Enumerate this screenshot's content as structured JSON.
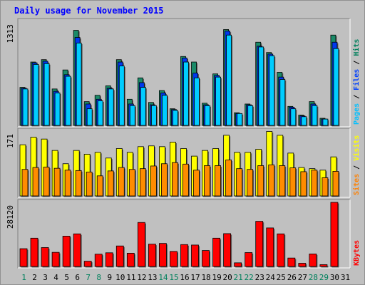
{
  "chart_data": {
    "type": "bar",
    "title": "Daily usage for November 2015",
    "x": [
      "1",
      "2",
      "3",
      "4",
      "5",
      "6",
      "7",
      "8",
      "9",
      "10",
      "11",
      "12",
      "13",
      "14",
      "15",
      "16",
      "17",
      "18",
      "19",
      "20",
      "21",
      "22",
      "23",
      "24",
      "25",
      "26",
      "27",
      "28",
      "29",
      "30",
      "31"
    ],
    "weekend_days": [
      "1",
      "7",
      "8",
      "14",
      "15",
      "21",
      "22",
      "28",
      "29"
    ],
    "panels": [
      {
        "id": "pages-files-hits",
        "max_label": "1313",
        "ylim": [
          0,
          1313
        ],
        "legend": [
          {
            "text": "Pages",
            "color": "#00c0ff"
          },
          {
            "text": "Files",
            "color": "#0040ff"
          },
          {
            "text": "Hits",
            "color": "#00805c"
          }
        ],
        "series": [
          {
            "name": "Hits",
            "color": "#1a8a68",
            "values": [
              480,
              800,
              830,
              460,
              700,
              1200,
              300,
              380,
              500,
              830,
              330,
              600,
              290,
              440,
              210,
              870,
              800,
              280,
              650,
              1210,
              160,
              270,
              1050,
              920,
              670,
              240,
              130,
              300,
              90,
              1140,
              0
            ]
          },
          {
            "name": "Files",
            "color": "#0038ee",
            "values": [
              470,
              790,
              810,
              430,
              640,
              1110,
              270,
              330,
              470,
              800,
              270,
              540,
              260,
              410,
              200,
              850,
              660,
              260,
              630,
              1190,
              150,
              260,
              1000,
              900,
              610,
              230,
              120,
              270,
              80,
              1050,
              0
            ]
          },
          {
            "name": "Pages",
            "color": "#00ccff",
            "values": [
              460,
              770,
              780,
              410,
              620,
              1040,
              210,
              310,
              460,
              750,
              250,
              480,
              250,
              380,
              190,
              800,
              600,
              250,
              610,
              1140,
              150,
              250,
              990,
              880,
              580,
              210,
              110,
              250,
              80,
              970,
              0
            ]
          }
        ]
      },
      {
        "id": "sites-visits",
        "max_label": "171",
        "ylim": [
          0,
          171
        ],
        "legend": [
          {
            "text": "Sites",
            "color": "#ff8000"
          },
          {
            "text": "Visits",
            "color": "#ffff00"
          }
        ],
        "series": [
          {
            "name": "Visits",
            "color": "#ffff00",
            "values": [
              135,
              155,
              150,
              120,
              85,
              120,
              110,
              115,
              100,
              125,
              115,
              130,
              132,
              130,
              142,
              125,
              105,
              120,
              125,
              160,
              115,
              115,
              123,
              170,
              160,
              113,
              75,
              72,
              68,
              103,
              0
            ]
          },
          {
            "name": "Sites",
            "color": "#ff8c00",
            "values": [
              70,
              75,
              76,
              73,
              68,
              67,
              63,
              53,
              66,
              75,
              70,
              72,
              79,
              85,
              88,
              84,
              68,
              80,
              80,
              95,
              72,
              70,
              80,
              82,
              80,
              74,
              64,
              68,
              48,
              65,
              0
            ]
          }
        ]
      },
      {
        "id": "kbytes",
        "max_label": "28120",
        "ylim": [
          0,
          28120
        ],
        "legend": [
          {
            "text": "KBytes",
            "color": "#ff0000"
          }
        ],
        "series": [
          {
            "name": "KBytes",
            "color": "#ff0000",
            "values": [
              7800,
              12400,
              8300,
              6200,
              13300,
              14300,
              2300,
              5400,
              6000,
              9000,
              5800,
              19300,
              9800,
              10100,
              6600,
              9600,
              9400,
              7000,
              12400,
              14400,
              1600,
              6100,
              19800,
              16900,
              14300,
              3700,
              1400,
              5500,
              800,
              28120,
              0
            ]
          }
        ]
      }
    ]
  }
}
